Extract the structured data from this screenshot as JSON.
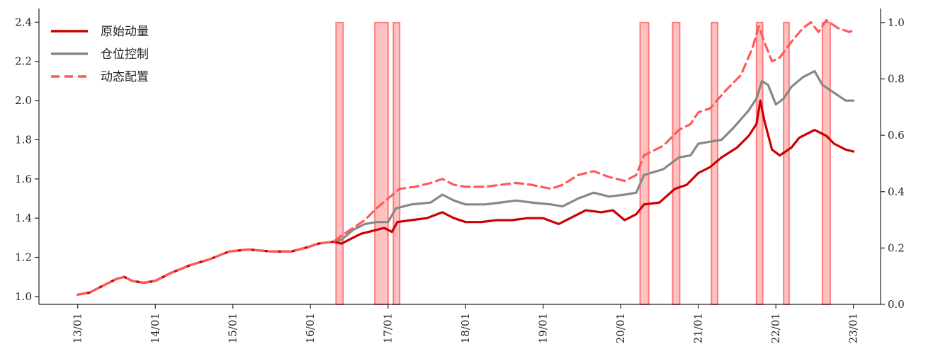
{
  "chart_data": {
    "type": "line",
    "x_ticks": [
      "13/01",
      "14/01",
      "15/01",
      "16/01",
      "17/01",
      "18/01",
      "19/01",
      "20/01",
      "21/01",
      "22/01",
      "23/01"
    ],
    "y_left_ticks": [
      "1.0",
      "1.2",
      "1.4",
      "1.6",
      "1.8",
      "2.0",
      "2.2",
      "2.4"
    ],
    "y_right_ticks": [
      "0.0",
      "0.2",
      "0.4",
      "0.6",
      "0.8",
      "1.0"
    ],
    "ylim_left": [
      0.96,
      2.47
    ],
    "ylim_right": [
      0,
      1.05
    ],
    "xlim": [
      2012.5,
      2023.35
    ],
    "legend_position": "top-left",
    "colors": {
      "original": "#cc0000",
      "position": "#888888",
      "dynamic": "#ff5a5a",
      "signal_fill": "#ffc2c2",
      "signal_stroke": "#ff7a7a"
    },
    "series": [
      {
        "name": "原始动量",
        "key": "original",
        "points": [
          [
            2013.0,
            1.01
          ],
          [
            2013.15,
            1.02
          ],
          [
            2013.3,
            1.05
          ],
          [
            2013.5,
            1.09
          ],
          [
            2013.6,
            1.1
          ],
          [
            2013.7,
            1.08
          ],
          [
            2013.85,
            1.07
          ],
          [
            2014.0,
            1.08
          ],
          [
            2014.2,
            1.12
          ],
          [
            2014.45,
            1.16
          ],
          [
            2014.7,
            1.19
          ],
          [
            2014.95,
            1.23
          ],
          [
            2015.2,
            1.24
          ],
          [
            2015.5,
            1.23
          ],
          [
            2015.75,
            1.23
          ],
          [
            2015.95,
            1.25
          ],
          [
            2016.1,
            1.27
          ],
          [
            2016.3,
            1.28
          ],
          [
            2016.4,
            1.27
          ],
          [
            2016.5,
            1.29
          ],
          [
            2016.65,
            1.32
          ],
          [
            2016.85,
            1.34
          ],
          [
            2016.95,
            1.35
          ],
          [
            2017.05,
            1.33
          ],
          [
            2017.12,
            1.38
          ],
          [
            2017.3,
            1.39
          ],
          [
            2017.5,
            1.4
          ],
          [
            2017.7,
            1.43
          ],
          [
            2017.85,
            1.4
          ],
          [
            2018.0,
            1.38
          ],
          [
            2018.2,
            1.38
          ],
          [
            2018.4,
            1.39
          ],
          [
            2018.6,
            1.39
          ],
          [
            2018.8,
            1.4
          ],
          [
            2019.0,
            1.4
          ],
          [
            2019.2,
            1.37
          ],
          [
            2019.35,
            1.4
          ],
          [
            2019.55,
            1.44
          ],
          [
            2019.75,
            1.43
          ],
          [
            2019.9,
            1.44
          ],
          [
            2020.05,
            1.39
          ],
          [
            2020.2,
            1.42
          ],
          [
            2020.3,
            1.47
          ],
          [
            2020.5,
            1.48
          ],
          [
            2020.7,
            1.55
          ],
          [
            2020.85,
            1.57
          ],
          [
            2021.0,
            1.63
          ],
          [
            2021.15,
            1.66
          ],
          [
            2021.3,
            1.71
          ],
          [
            2021.5,
            1.76
          ],
          [
            2021.65,
            1.82
          ],
          [
            2021.75,
            1.88
          ],
          [
            2021.8,
            2.0
          ],
          [
            2021.85,
            1.9
          ],
          [
            2021.95,
            1.75
          ],
          [
            2022.05,
            1.72
          ],
          [
            2022.2,
            1.76
          ],
          [
            2022.3,
            1.81
          ],
          [
            2022.5,
            1.85
          ],
          [
            2022.65,
            1.82
          ],
          [
            2022.75,
            1.78
          ],
          [
            2022.9,
            1.75
          ],
          [
            2023.0,
            1.74
          ]
        ]
      },
      {
        "name": "仓位控制",
        "key": "position",
        "points": [
          [
            2013.0,
            1.01
          ],
          [
            2013.15,
            1.02
          ],
          [
            2013.3,
            1.05
          ],
          [
            2013.5,
            1.09
          ],
          [
            2013.6,
            1.1
          ],
          [
            2013.7,
            1.08
          ],
          [
            2013.85,
            1.07
          ],
          [
            2014.0,
            1.08
          ],
          [
            2014.2,
            1.12
          ],
          [
            2014.45,
            1.16
          ],
          [
            2014.7,
            1.19
          ],
          [
            2014.95,
            1.23
          ],
          [
            2015.2,
            1.24
          ],
          [
            2015.5,
            1.23
          ],
          [
            2015.75,
            1.23
          ],
          [
            2015.95,
            1.25
          ],
          [
            2016.1,
            1.27
          ],
          [
            2016.3,
            1.28
          ],
          [
            2016.4,
            1.29
          ],
          [
            2016.55,
            1.34
          ],
          [
            2016.7,
            1.37
          ],
          [
            2016.85,
            1.38
          ],
          [
            2017.0,
            1.38
          ],
          [
            2017.1,
            1.45
          ],
          [
            2017.3,
            1.47
          ],
          [
            2017.55,
            1.48
          ],
          [
            2017.7,
            1.52
          ],
          [
            2017.85,
            1.49
          ],
          [
            2018.0,
            1.47
          ],
          [
            2018.25,
            1.47
          ],
          [
            2018.45,
            1.48
          ],
          [
            2018.65,
            1.49
          ],
          [
            2018.85,
            1.48
          ],
          [
            2019.1,
            1.47
          ],
          [
            2019.25,
            1.46
          ],
          [
            2019.45,
            1.5
          ],
          [
            2019.65,
            1.53
          ],
          [
            2019.85,
            1.51
          ],
          [
            2020.05,
            1.52
          ],
          [
            2020.2,
            1.53
          ],
          [
            2020.3,
            1.62
          ],
          [
            2020.55,
            1.65
          ],
          [
            2020.75,
            1.71
          ],
          [
            2020.9,
            1.72
          ],
          [
            2021.0,
            1.78
          ],
          [
            2021.15,
            1.79
          ],
          [
            2021.3,
            1.8
          ],
          [
            2021.45,
            1.86
          ],
          [
            2021.65,
            1.95
          ],
          [
            2021.75,
            2.01
          ],
          [
            2021.82,
            2.1
          ],
          [
            2021.9,
            2.08
          ],
          [
            2022.0,
            1.98
          ],
          [
            2022.1,
            2.01
          ],
          [
            2022.2,
            2.07
          ],
          [
            2022.35,
            2.12
          ],
          [
            2022.5,
            2.15
          ],
          [
            2022.6,
            2.08
          ],
          [
            2022.75,
            2.04
          ],
          [
            2022.9,
            2.0
          ],
          [
            2023.0,
            2.0
          ]
        ]
      },
      {
        "name": "动态配置",
        "key": "dynamic",
        "points": [
          [
            2013.0,
            1.01
          ],
          [
            2013.15,
            1.02
          ],
          [
            2013.3,
            1.05
          ],
          [
            2013.5,
            1.09
          ],
          [
            2013.6,
            1.1
          ],
          [
            2013.7,
            1.08
          ],
          [
            2013.85,
            1.07
          ],
          [
            2014.0,
            1.08
          ],
          [
            2014.2,
            1.12
          ],
          [
            2014.45,
            1.16
          ],
          [
            2014.7,
            1.19
          ],
          [
            2014.95,
            1.23
          ],
          [
            2015.2,
            1.24
          ],
          [
            2015.5,
            1.23
          ],
          [
            2015.75,
            1.23
          ],
          [
            2015.95,
            1.25
          ],
          [
            2016.1,
            1.27
          ],
          [
            2016.3,
            1.28
          ],
          [
            2016.4,
            1.31
          ],
          [
            2016.55,
            1.35
          ],
          [
            2016.7,
            1.39
          ],
          [
            2016.85,
            1.45
          ],
          [
            2017.0,
            1.5
          ],
          [
            2017.15,
            1.55
          ],
          [
            2017.35,
            1.56
          ],
          [
            2017.55,
            1.58
          ],
          [
            2017.7,
            1.6
          ],
          [
            2017.85,
            1.57
          ],
          [
            2018.0,
            1.56
          ],
          [
            2018.25,
            1.56
          ],
          [
            2018.45,
            1.57
          ],
          [
            2018.65,
            1.58
          ],
          [
            2018.85,
            1.57
          ],
          [
            2019.1,
            1.55
          ],
          [
            2019.25,
            1.57
          ],
          [
            2019.45,
            1.62
          ],
          [
            2019.65,
            1.64
          ],
          [
            2019.85,
            1.61
          ],
          [
            2020.05,
            1.59
          ],
          [
            2020.2,
            1.62
          ],
          [
            2020.3,
            1.72
          ],
          [
            2020.55,
            1.77
          ],
          [
            2020.75,
            1.85
          ],
          [
            2020.9,
            1.88
          ],
          [
            2021.0,
            1.94
          ],
          [
            2021.15,
            1.96
          ],
          [
            2021.35,
            2.05
          ],
          [
            2021.55,
            2.13
          ],
          [
            2021.7,
            2.27
          ],
          [
            2021.78,
            2.38
          ],
          [
            2021.85,
            2.3
          ],
          [
            2021.95,
            2.2
          ],
          [
            2022.05,
            2.22
          ],
          [
            2022.2,
            2.3
          ],
          [
            2022.35,
            2.37
          ],
          [
            2022.45,
            2.4
          ],
          [
            2022.55,
            2.35
          ],
          [
            2022.65,
            2.41
          ],
          [
            2022.8,
            2.37
          ],
          [
            2022.95,
            2.35
          ],
          [
            2023.0,
            2.36
          ]
        ]
      }
    ],
    "signal": {
      "axis": "right",
      "value": 1.0,
      "intervals": [
        [
          2016.33,
          2016.42
        ],
        [
          2016.83,
          2017.0
        ],
        [
          2017.07,
          2017.15
        ],
        [
          2020.25,
          2020.36
        ],
        [
          2020.67,
          2020.76
        ],
        [
          2021.17,
          2021.25
        ],
        [
          2021.75,
          2021.83
        ],
        [
          2022.1,
          2022.17
        ],
        [
          2022.6,
          2022.7
        ]
      ]
    }
  }
}
